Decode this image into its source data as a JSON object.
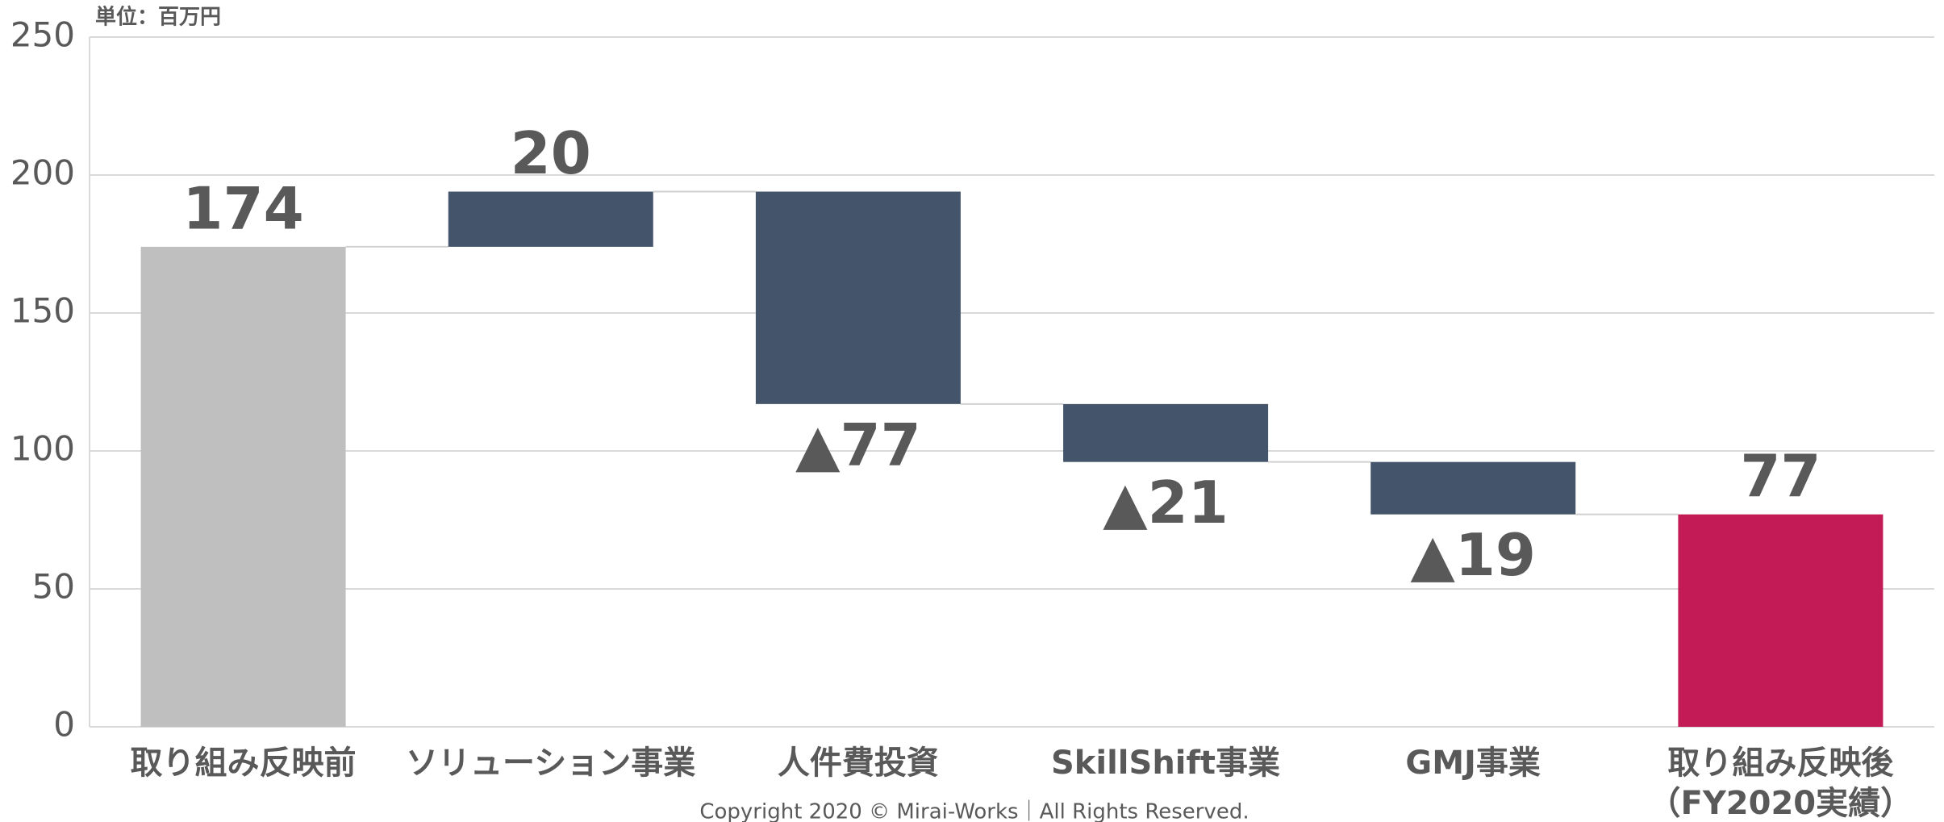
{
  "chart_data": {
    "type": "waterfall",
    "unit_label": "単位：百万円",
    "footer": "Copyright 2020 © Mirai-Works｜All Rights Reserved.",
    "categories": [
      "取り組み反映前",
      "ソリューション事業",
      "人件費投資",
      "SkillShift事業",
      "GMJ事業",
      "取り組み反映後\n（FY2020実績）"
    ],
    "values": [
      174,
      20,
      -77,
      -21,
      -19,
      77
    ],
    "value_labels": [
      "174",
      "20",
      "▲77",
      "▲21",
      "▲19",
      "77"
    ],
    "totals": [
      true,
      false,
      false,
      false,
      false,
      true
    ],
    "colors": [
      "#bfbfbf",
      "#44546a",
      "#44546a",
      "#44546a",
      "#44546a",
      "#c21b56"
    ],
    "ylim": [
      0,
      250
    ],
    "yticks": [
      0,
      50,
      100,
      150,
      200,
      250
    ],
    "grid": true
  }
}
